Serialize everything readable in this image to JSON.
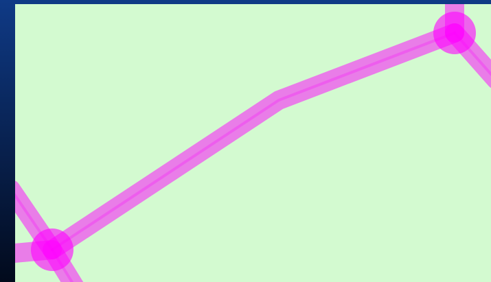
{
  "window": {
    "backdrop_top_color": "#0f3a86",
    "backdrop_bottom_color": "#020a1c"
  },
  "map": {
    "fill_color": "#d3fad0",
    "edge_color": "#ff00ff",
    "edge_opacity": 0.5,
    "vertex_color": "#ff00ff",
    "vertex_opacity": 0.6
  },
  "selection": {
    "edges": [
      "edge-main",
      "edge-upper-right",
      "edge-lower-left-top",
      "edge-lower-left-bottom"
    ],
    "vertices": [
      "vertex-lower-left",
      "vertex-upper-right"
    ],
    "midpoints": [
      "midpoint-bend"
    ]
  }
}
